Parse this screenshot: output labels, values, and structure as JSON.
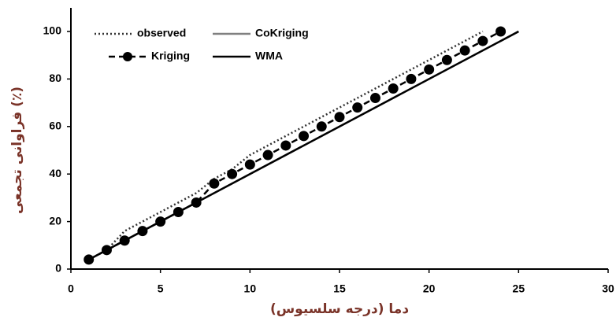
{
  "chart_data": {
    "type": "line",
    "x_label": "دما (درجه سلسیوس)",
    "y_label": "فراوانی تجمعی (٪)",
    "xlim": [
      0,
      30
    ],
    "xticks": [
      0,
      5,
      10,
      15,
      20,
      25,
      30
    ],
    "ylim": [
      0,
      100
    ],
    "yticks": [
      0,
      20,
      40,
      60,
      80,
      100
    ],
    "grid": false,
    "legend": "upper left",
    "series": [
      {
        "name": "observed",
        "color": "#333333",
        "style": "dotted",
        "marker": "none",
        "x": [
          1,
          2,
          3,
          4,
          5,
          6,
          7,
          8,
          9,
          10,
          11,
          12,
          13,
          14,
          15,
          16,
          17,
          18,
          19,
          20,
          21,
          22,
          23
        ],
        "values": [
          4,
          8,
          16,
          20,
          24,
          28,
          32,
          38,
          42,
          48,
          52,
          56,
          60,
          64,
          68,
          72,
          76,
          80,
          84,
          88,
          92,
          96,
          100
        ]
      },
      {
        "name": "CoKriging",
        "color": "#808080",
        "style": "solid",
        "marker": "none",
        "x": [
          1,
          25
        ],
        "values": [
          4,
          100
        ]
      },
      {
        "name": "Kriging",
        "color": "#000000",
        "style": "dashed",
        "marker": "circle",
        "x": [
          1,
          2,
          3,
          4,
          5,
          6,
          7,
          8,
          9,
          10,
          11,
          12,
          13,
          14,
          15,
          16,
          17,
          18,
          19,
          20,
          21,
          22,
          23,
          24
        ],
        "values": [
          4,
          8,
          12,
          16,
          20,
          24,
          28,
          36,
          40,
          44,
          48,
          52,
          56,
          60,
          64,
          68,
          72,
          76,
          80,
          84,
          88,
          92,
          96,
          100
        ]
      },
      {
        "name": "WMA",
        "color": "#000000",
        "style": "solid",
        "marker": "none",
        "x": [
          1,
          25
        ],
        "values": [
          4,
          100
        ]
      }
    ]
  }
}
